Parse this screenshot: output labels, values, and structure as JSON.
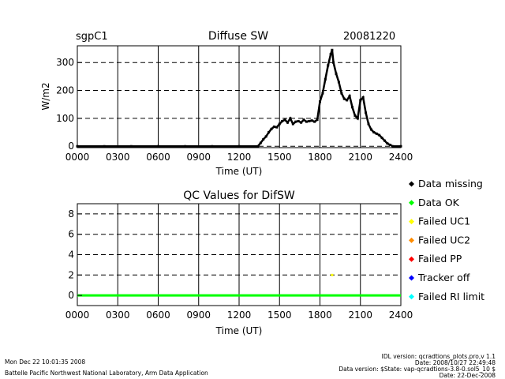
{
  "chart_data": [
    {
      "type": "scatter",
      "title": "Diffuse SW",
      "site": "sgpC1",
      "date": "20081220",
      "xlabel": "Time (UT)",
      "ylabel": "W/m2",
      "xlim": [
        0,
        24
      ],
      "ylim": [
        -5,
        360
      ],
      "grid": true,
      "x_ticks": [
        "0000",
        "0300",
        "0600",
        "0900",
        "1200",
        "1500",
        "1800",
        "2100",
        "2400"
      ],
      "y_ticks": [
        "0",
        "100",
        "200",
        "300"
      ],
      "y_tick_values": [
        0,
        100,
        200,
        300
      ],
      "series": [
        {
          "color": "#000000",
          "points": [
            [
              0,
              0
            ],
            [
              2,
              0
            ],
            [
              4,
              0
            ],
            [
              6,
              0
            ],
            [
              8,
              0
            ],
            [
              10,
              0
            ],
            [
              12,
              0
            ],
            [
              13.4,
              0
            ],
            [
              13.6,
              12
            ],
            [
              13.8,
              25
            ],
            [
              14.0,
              35
            ],
            [
              14.2,
              50
            ],
            [
              14.4,
              62
            ],
            [
              14.6,
              70
            ],
            [
              14.8,
              68
            ],
            [
              15.0,
              80
            ],
            [
              15.2,
              90
            ],
            [
              15.4,
              95
            ],
            [
              15.6,
              85
            ],
            [
              15.8,
              100
            ],
            [
              16.0,
              80
            ],
            [
              16.2,
              88
            ],
            [
              16.4,
              90
            ],
            [
              16.6,
              85
            ],
            [
              16.8,
              95
            ],
            [
              17.0,
              88
            ],
            [
              17.2,
              90
            ],
            [
              17.4,
              92
            ],
            [
              17.6,
              88
            ],
            [
              17.8,
              95
            ],
            [
              18.0,
              160
            ],
            [
              18.2,
              190
            ],
            [
              18.4,
              240
            ],
            [
              18.6,
              290
            ],
            [
              18.8,
              330
            ],
            [
              18.9,
              345
            ],
            [
              19.0,
              300
            ],
            [
              19.2,
              260
            ],
            [
              19.4,
              230
            ],
            [
              19.6,
              190
            ],
            [
              19.8,
              170
            ],
            [
              20.0,
              165
            ],
            [
              20.2,
              180
            ],
            [
              20.4,
              140
            ],
            [
              20.6,
              110
            ],
            [
              20.8,
              100
            ],
            [
              21.0,
              165
            ],
            [
              21.2,
              175
            ],
            [
              21.4,
              120
            ],
            [
              21.6,
              80
            ],
            [
              21.8,
              60
            ],
            [
              22.0,
              50
            ],
            [
              22.2,
              45
            ],
            [
              22.4,
              40
            ],
            [
              22.6,
              30
            ],
            [
              22.8,
              20
            ],
            [
              23.0,
              10
            ],
            [
              23.2,
              5
            ],
            [
              23.4,
              0
            ],
            [
              24,
              0
            ]
          ]
        }
      ]
    },
    {
      "type": "scatter",
      "title": "QC Values for DifSW",
      "xlabel": "Time (UT)",
      "ylabel": "",
      "xlim": [
        0,
        24
      ],
      "ylim": [
        -1,
        9
      ],
      "grid": true,
      "x_ticks": [
        "0000",
        "0300",
        "0600",
        "0900",
        "1200",
        "1500",
        "1800",
        "2100",
        "2400"
      ],
      "y_ticks": [
        "0",
        "2",
        "4",
        "6",
        "8"
      ],
      "y_tick_values": [
        0,
        2,
        4,
        6,
        8
      ],
      "series": [
        {
          "name": "Data OK",
          "color": "#00ff00",
          "segment": {
            "x_start": 0,
            "x_end": 24,
            "y": 0
          }
        },
        {
          "name": "Failed UC1",
          "color": "#ffff00",
          "points": [
            [
              18.9,
              2
            ]
          ]
        }
      ],
      "legend": {
        "placement": "right",
        "entries": [
          {
            "label": "Data missing",
            "color": "#000000"
          },
          {
            "label": "Data OK",
            "color": "#00ff00"
          },
          {
            "label": "Failed UC1",
            "color": "#ffff00"
          },
          {
            "label": "Failed UC2",
            "color": "#ff8c00"
          },
          {
            "label": "Failed PP",
            "color": "#ff0000"
          },
          {
            "label": "Tracker off",
            "color": "#0000ff"
          },
          {
            "label": "Failed RI limit",
            "color": "#00ffff"
          }
        ]
      }
    }
  ],
  "footer": {
    "timestamp": "Mon Dec 22 10:01:35 2008",
    "lab": "Battelle Pacific Northwest National Laboratory, Arm Data Application",
    "idl_version": "IDL version: qcradtions_plots.pro,v 1.1",
    "idl_date": "Date: 2008/10/27 22:49:48",
    "data_version": "Data version: $State: vap-qcradtions-3.8-0.sol5_10 $",
    "data_date": "Date: 22-Dec-2008"
  }
}
